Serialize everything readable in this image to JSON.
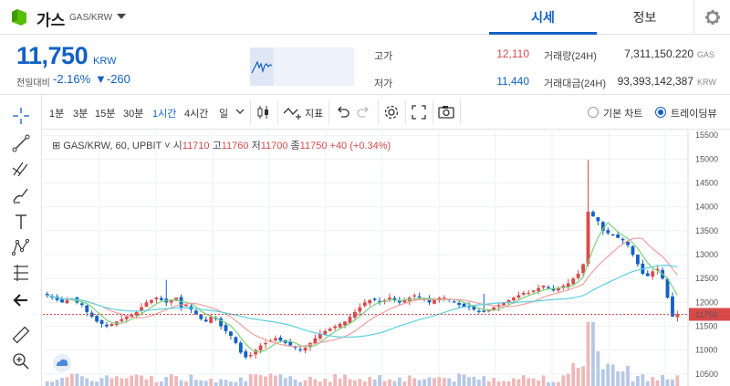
{
  "header": {
    "coin_name": "가스",
    "pair": "GAS/KRW",
    "tabs": [
      {
        "label": "시세"
      },
      {
        "label": "정보"
      }
    ]
  },
  "price": {
    "current": "11,750",
    "currency": "KRW",
    "change_label": "전일대비",
    "change_rate": "-2.16%",
    "change_amount": "▼-260",
    "color_down": "#1261c4",
    "color_up": "#d84a4a"
  },
  "stats": {
    "high_label": "고가",
    "high_value": "12,110",
    "low_label": "저가",
    "low_value": "11,440",
    "volume_label": "거래량(24H)",
    "volume_value": "7,311,150.220",
    "volume_unit": "GAS",
    "turnover_label": "거래대금(24H)",
    "turnover_value": "93,393,142,387",
    "turnover_unit": "KRW"
  },
  "toolbar": {
    "timeframes": [
      "1분",
      "3분",
      "15분",
      "30분",
      "1시간",
      "4시간",
      "일"
    ],
    "active_timeframe": "1시간",
    "indicator_label": "지표",
    "view_basic": "기본 차트",
    "view_trading": "트레이딩뷰"
  },
  "chart": {
    "symbol": "GAS/KRW, 60, UPBIT",
    "o_label": "시",
    "o_value": "11710",
    "h_label": "고",
    "h_value": "11760",
    "l_label": "저",
    "l_value": "11700",
    "c_label": "종",
    "c_value": "11750",
    "change": "+40 (+0.34%)",
    "last_price_tag": "11750"
  },
  "chart_data": {
    "type": "candlestick",
    "y_ticks": [
      15500,
      15000,
      14500,
      14000,
      13500,
      13000,
      12500,
      12000,
      11500,
      11000,
      10500
    ],
    "ylim": [
      10250,
      15600
    ],
    "last_price": 11750,
    "close_series": [
      12150,
      12100,
      12050,
      12000,
      12050,
      12080,
      12000,
      11950,
      11800,
      11700,
      11600,
      11550,
      11500,
      11550,
      11600,
      11650,
      11700,
      11750,
      11800,
      11900,
      12000,
      12050,
      12100,
      12050,
      12000,
      12050,
      12100,
      11900,
      11950,
      11850,
      11750,
      11650,
      11600,
      11700,
      11650,
      11500,
      11400,
      11300,
      11150,
      10950,
      10850,
      10900,
      11000,
      11100,
      11150,
      11200,
      11250,
      11200,
      11150,
      11100,
      11050,
      11000,
      11050,
      11150,
      11250,
      11350,
      11400,
      11450,
      11500,
      11550,
      11600,
      11700,
      11800,
      11900,
      12000,
      12050,
      12050,
      12000,
      12050,
      12100,
      12050,
      12000,
      12050,
      12100,
      12150,
      12100,
      12050,
      12000,
      12050,
      12100,
      12100,
      12050,
      12000,
      11950,
      11900,
      11900,
      11850,
      11800,
      11800,
      11850,
      11900,
      11950,
      12000,
      12050,
      12100,
      12150,
      12200,
      12200,
      12250,
      12300,
      12350,
      12300,
      12250,
      12300,
      12350,
      12400,
      12500,
      12600,
      12800,
      13900,
      13800,
      13700,
      13500,
      13450,
      13400,
      13350,
      13300,
      13200,
      13000,
      12800,
      12600,
      12550,
      12650,
      12700,
      12500,
      12100,
      11700,
      11750
    ]
  }
}
